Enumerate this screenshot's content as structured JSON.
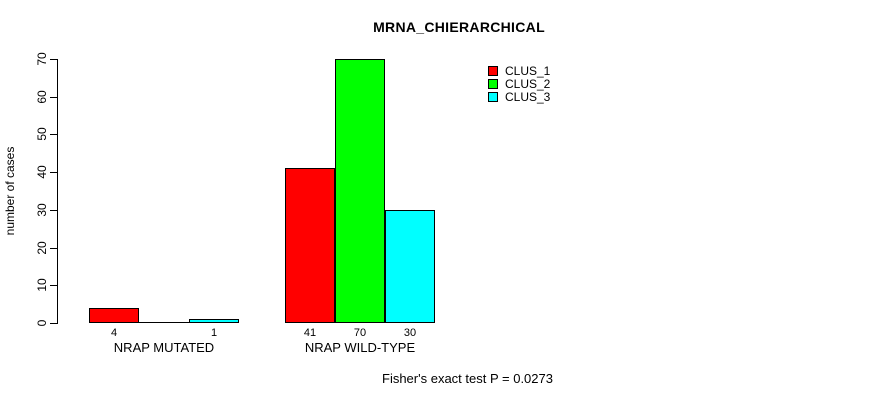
{
  "title": "MRNA_CHIERARCHICAL",
  "legend": {
    "items": [
      {
        "label": "CLUS_1",
        "color": "#FF0000"
      },
      {
        "label": "CLUS_2",
        "color": "#00FF00"
      },
      {
        "label": "CLUS_3",
        "color": "#00FFFF"
      }
    ]
  },
  "chart_data": {
    "type": "bar",
    "title": "MRNA_CHIERARCHICAL",
    "ylabel": "number of cases",
    "ylim": [
      0,
      70
    ],
    "yticks": [
      0,
      10,
      20,
      30,
      40,
      50,
      60,
      70
    ],
    "categories": [
      "NRAP MUTATED",
      "NRAP WILD-TYPE"
    ],
    "series": [
      {
        "name": "CLUS_1",
        "color": "#FF0000",
        "values": [
          4,
          41
        ]
      },
      {
        "name": "CLUS_2",
        "color": "#00FF00",
        "values": [
          0,
          70
        ]
      },
      {
        "name": "CLUS_3",
        "color": "#00FFFF",
        "values": [
          1,
          30
        ]
      }
    ],
    "bar_value_labels": [
      [
        "4",
        "",
        "1"
      ],
      [
        "41",
        "70",
        "30"
      ]
    ],
    "legend_position": "top-right",
    "grid": false,
    "annotation": "Fisher's exact test P = 0.0273"
  }
}
